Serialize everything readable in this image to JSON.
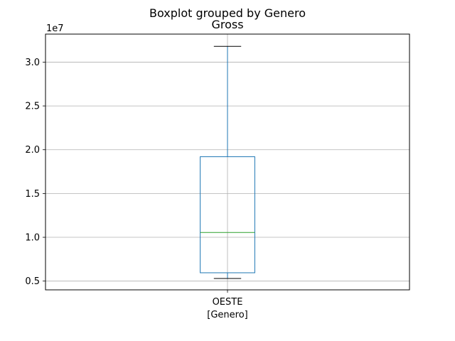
{
  "chart_data": {
    "type": "boxplot",
    "suptitle": "Boxplot grouped by Genero",
    "title": "Gross",
    "xlabel": "[Genero]",
    "ylabel": "",
    "offset_label": "1e7",
    "categories": [
      "OESTE"
    ],
    "boxes": [
      {
        "category": "OESTE",
        "whisker_low": 5300000,
        "q1": 5950000,
        "median": 10550000,
        "q3": 19200000,
        "whisker_high": 31800000
      }
    ],
    "ylim": [
      4000000,
      33200000
    ],
    "yticks": [
      5000000,
      10000000,
      15000000,
      20000000,
      25000000,
      30000000
    ],
    "ytick_labels": [
      "0.5",
      "1.0",
      "1.5",
      "2.0",
      "2.5",
      "3.0"
    ],
    "grid": true,
    "colors": {
      "box": "#1f77b4",
      "median": "#2ca02c",
      "whisker": "#1f77b4",
      "cap": "#000000",
      "grid": "#b0b0b0"
    }
  }
}
